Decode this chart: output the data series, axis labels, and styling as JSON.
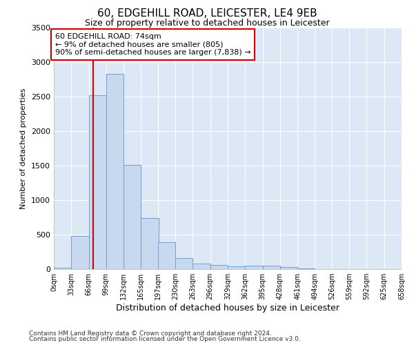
{
  "title": "60, EDGEHILL ROAD, LEICESTER, LE4 9EB",
  "subtitle": "Size of property relative to detached houses in Leicester",
  "xlabel": "Distribution of detached houses by size in Leicester",
  "ylabel": "Number of detached properties",
  "bar_color": "#c8d8ee",
  "bar_edgecolor": "#6fa0d0",
  "bin_starts": [
    0,
    33,
    66,
    99,
    132,
    165,
    197,
    230,
    263,
    296,
    329,
    362,
    395,
    428,
    461,
    494,
    526,
    559,
    592,
    625
  ],
  "bin_labels": [
    "0sqm",
    "33sqm",
    "66sqm",
    "99sqm",
    "132sqm",
    "165sqm",
    "197sqm",
    "230sqm",
    "263sqm",
    "296sqm",
    "329sqm",
    "362sqm",
    "395sqm",
    "428sqm",
    "461sqm",
    "494sqm",
    "526sqm",
    "559sqm",
    "592sqm",
    "625sqm",
    "658sqm"
  ],
  "bar_heights": [
    20,
    480,
    2520,
    2830,
    1510,
    740,
    390,
    160,
    80,
    60,
    40,
    50,
    55,
    30,
    10,
    5,
    3,
    2,
    1,
    1
  ],
  "bin_width": 33,
  "property_size": 74,
  "red_line_color": "#cc0000",
  "annotation_text": "60 EDGEHILL ROAD: 74sqm\n← 9% of detached houses are smaller (805)\n90% of semi-detached houses are larger (7,838) →",
  "annotation_box_color": "#ffffff",
  "annotation_box_edgecolor": "#cc0000",
  "ylim": [
    0,
    3500
  ],
  "yticks": [
    0,
    500,
    1000,
    1500,
    2000,
    2500,
    3000,
    3500
  ],
  "fig_background": "#ffffff",
  "plot_background": "#dce8f5",
  "grid_color": "#ffffff",
  "footer_line1": "Contains HM Land Registry data © Crown copyright and database right 2024.",
  "footer_line2": "Contains public sector information licensed under the Open Government Licence v3.0."
}
